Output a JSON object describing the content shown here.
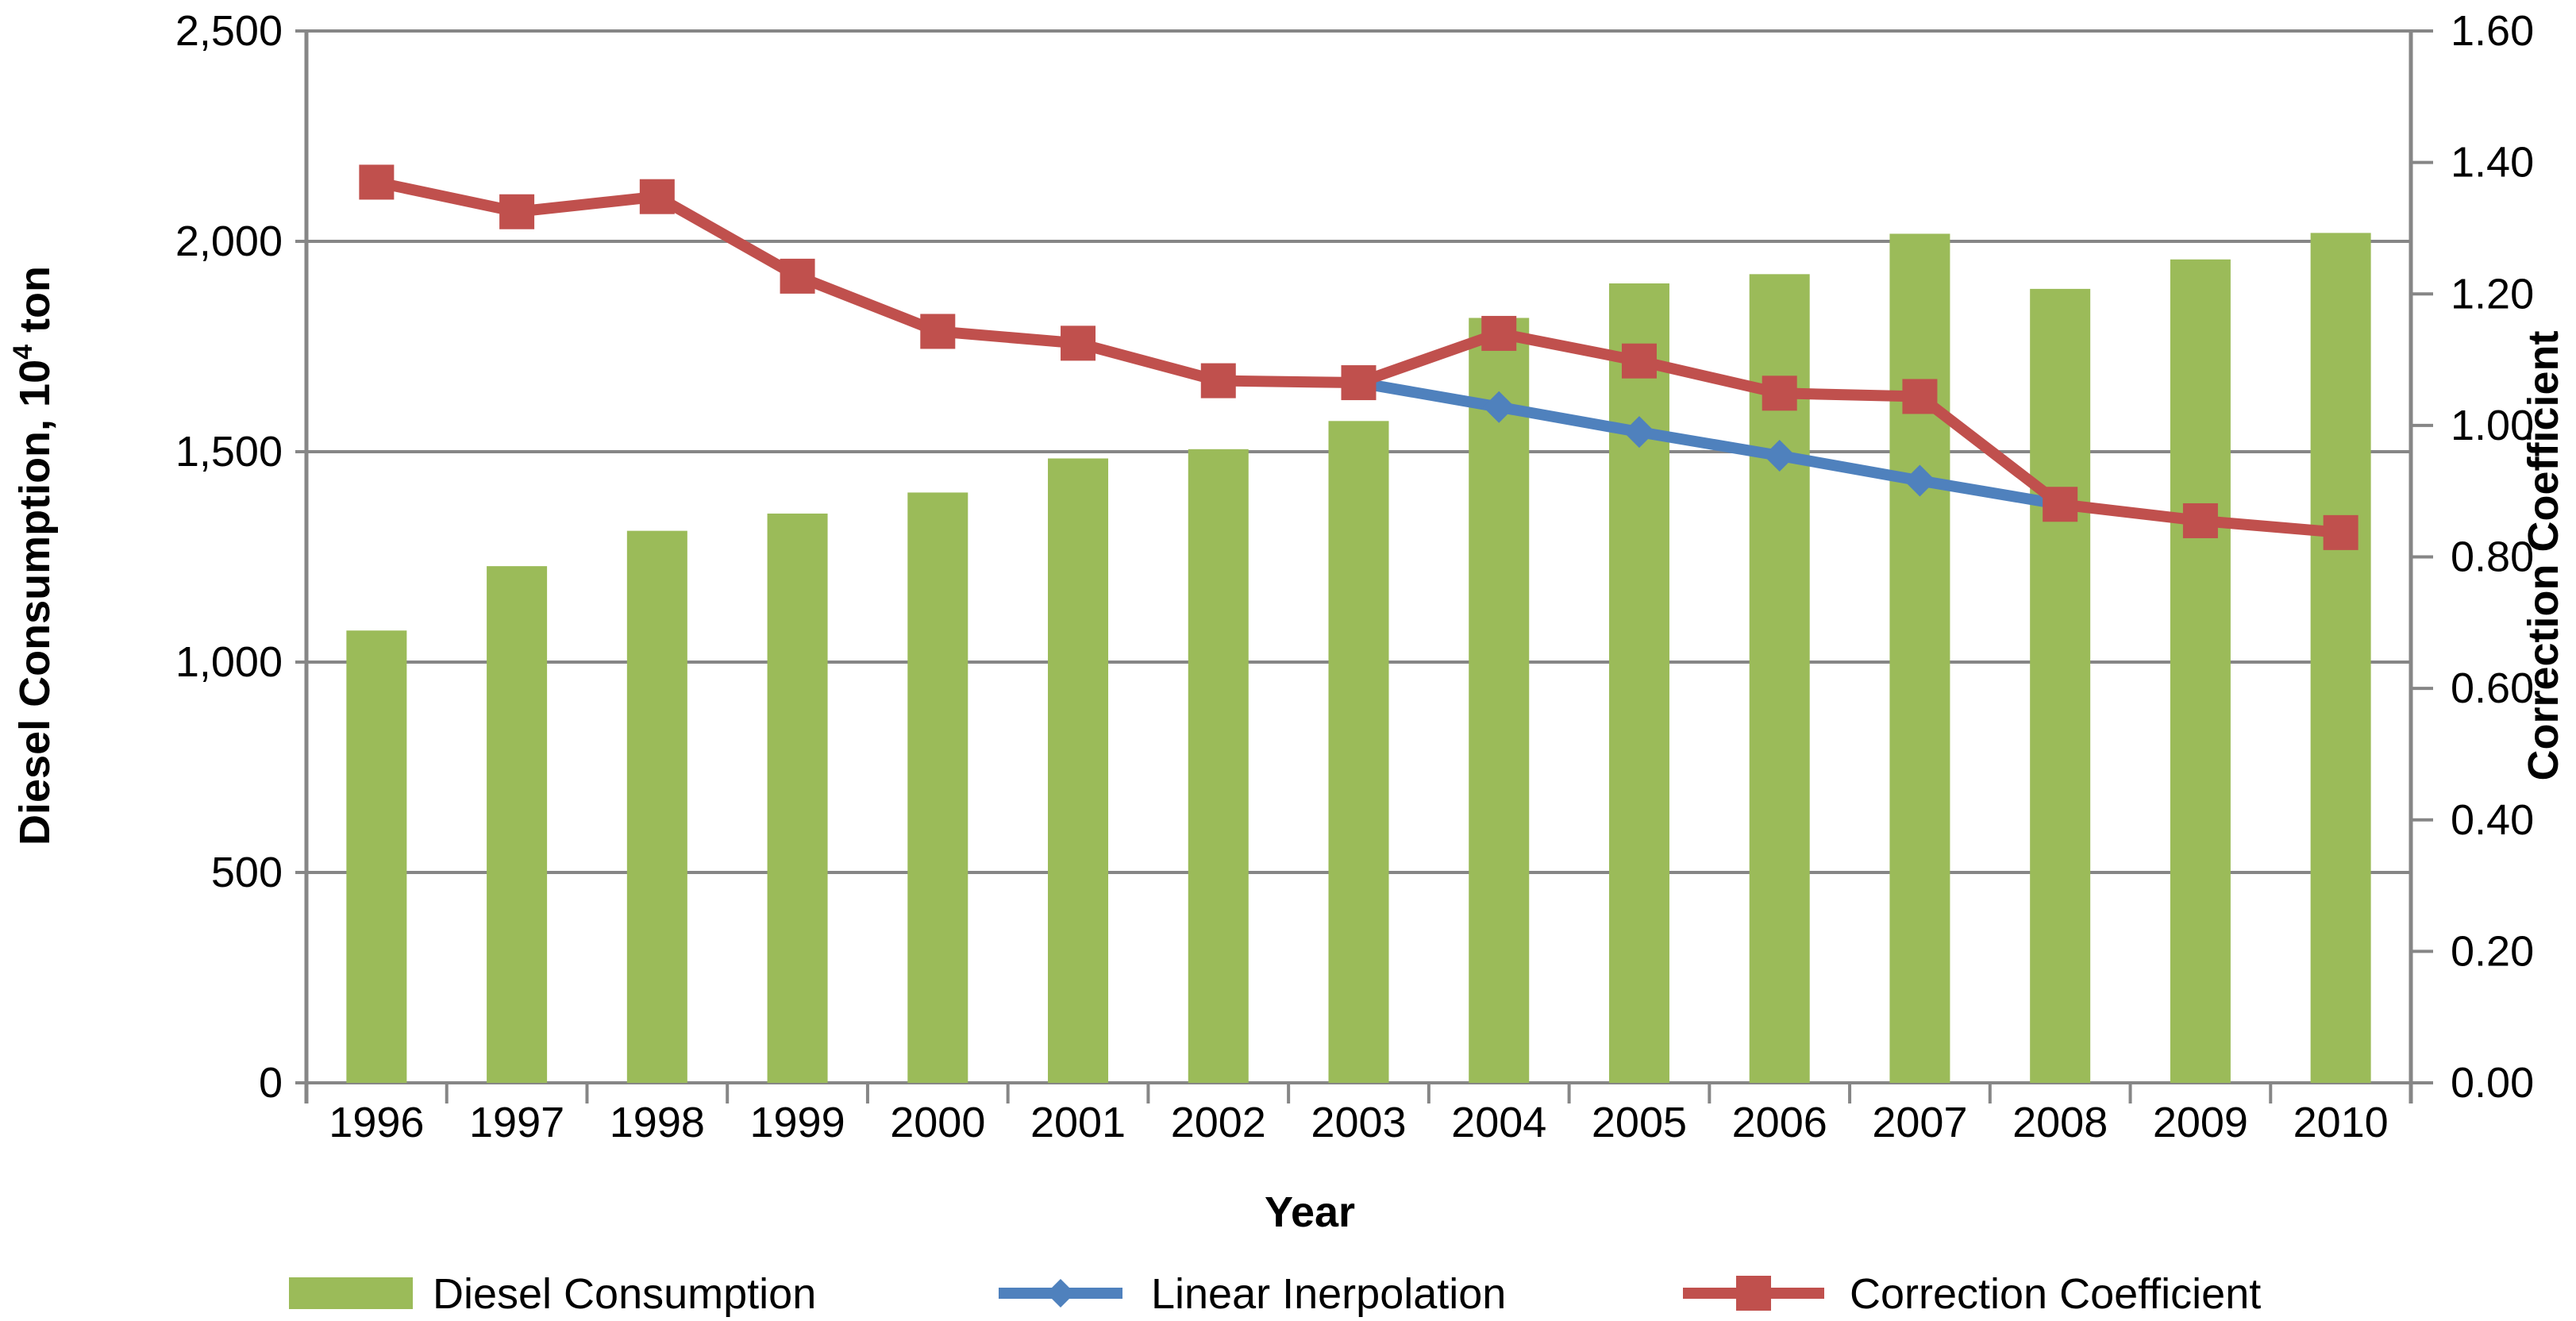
{
  "chart_data": {
    "type": "bar+line",
    "categories": [
      "1996",
      "1997",
      "1998",
      "1999",
      "2000",
      "2001",
      "2002",
      "2003",
      "2004",
      "2005",
      "2006",
      "2007",
      "2008",
      "2009",
      "2010"
    ],
    "xlabel": "Year",
    "ylabel": "Diesel Consumption, 10",
    "ylabel_sup": "4",
    "ylabel_suffix": " ton",
    "y2label": "Correction Coefficient",
    "ylim": [
      0,
      2500
    ],
    "y2lim": [
      0,
      1.6
    ],
    "yticks": [
      "0",
      "500",
      "1,000",
      "1,500",
      "2,000",
      "2,500"
    ],
    "y2ticks": [
      "0.00",
      "0.20",
      "0.40",
      "0.60",
      "0.80",
      "1.00",
      "1.20",
      "1.40",
      "1.60"
    ],
    "grid": true,
    "legend_position": "bottom",
    "series": [
      {
        "name": "Diesel Consumption",
        "type": "bar",
        "axis": "left",
        "color": "#9BBB59",
        "values": [
          1075,
          1228,
          1312,
          1353,
          1403,
          1484,
          1506,
          1573,
          1818,
          1900,
          1922,
          2018,
          1887,
          1957,
          2020
        ]
      },
      {
        "name": "Linear Inerpolation",
        "type": "line",
        "axis": "right",
        "color": "#4F81BD",
        "marker": "diamond",
        "values": [
          null,
          null,
          null,
          null,
          null,
          null,
          null,
          1.065,
          1.028,
          0.99,
          0.954,
          0.916,
          0.88,
          null,
          null
        ]
      },
      {
        "name": "Correction Coefficient",
        "type": "line",
        "axis": "right",
        "color": "#C0504D",
        "marker": "square",
        "values": [
          1.37,
          1.325,
          1.348,
          1.227,
          1.143,
          1.125,
          1.068,
          1.065,
          1.14,
          1.098,
          1.049,
          1.044,
          0.88,
          0.855,
          0.837
        ]
      }
    ]
  }
}
